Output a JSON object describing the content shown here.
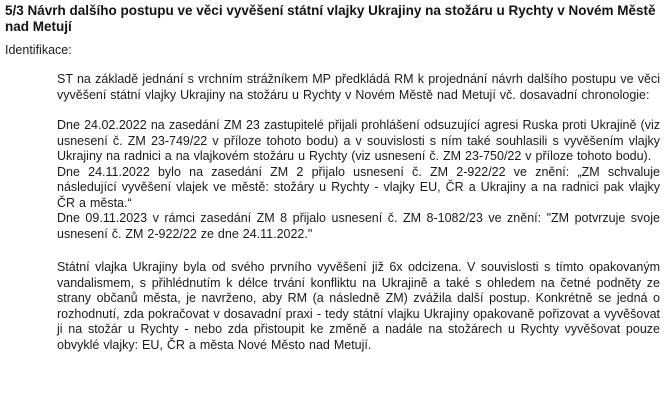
{
  "page": {
    "background_color": "#ffffff",
    "text_color": "#1a1a1a"
  },
  "document": {
    "title": "5/3 Návrh dalšího postupu ve věci vyvěšení státní vlajky Ukrajiny na stožáru u Rychty v Novém Městě nad Metují",
    "identification_label": "Identifikace:",
    "intro_paragraph": "ST na základě jednání s vrchním strážníkem MP předkládá RM k projednání návrh dalšího postupu ve věci vyvěšení státní vlajky Ukrajiny na stožáru u Rychty v Novém Městě nad Metují vč. dosavadní chronologie:",
    "chronology": [
      {
        "text": "Dne 24.02.2022 na zasedání ZM 23 zastupitelé přijali prohlášení odsuzující agresi Ruska proti Ukrajině (viz usnesení č. ZM 23-749/22 v příloze tohoto bodu) a v souvislosti s ním také souhlasili s vyvěšením vlajky Ukrajiny na radnici a na vlajkovém stožáru u Rychty (viz usnesení č. ZM 23-750/22 v příloze tohoto bodu)."
      },
      {
        "text": "Dne 24.11.2022 bylo na zasedání ZM 2 přijalo usnesení č. ZM 2-922/22 ve znění: „ZM schvaluje následující vyvěšení vlajek ve městě: stožáry u Rychty - vlajky EU, ČR a Ukrajiny a na radnici pak vlajky ČR a města.“"
      },
      {
        "text": "Dne 09.11.2023 v rámci zasedání ZM 8 přijalo usnesení č. ZM 8-1082/23 ve znění: \"ZM potvrzuje svoje usnesení č. ZM 2-922/22 ze dne 24.11.2022.\""
      }
    ],
    "proposal_paragraph": "Státní vlajka Ukrajiny byla od svého prvního vyvěšení již 6x odcizena. V souvislosti s tímto opakovaným vandalismem, s přihlédnutím k délce trvání konfliktu na Ukrajině a také s ohledem na četné podněty ze strany občanů města, je navrženo, aby RM (a následně ZM) zvážila další postup. Konkrétně se jedná o rozhodnutí, zda pokračovat v dosavadní praxi - tedy státní vlajku Ukrajiny opakovaně pořizovat a vyvěšovat ji na stožár u Rychty - nebo zda přistoupit ke změně a nadále na stožárech u Rychty vyvěšovat pouze obvyklé vlajky: EU, ČR a města Nové Město nad Metují."
  }
}
